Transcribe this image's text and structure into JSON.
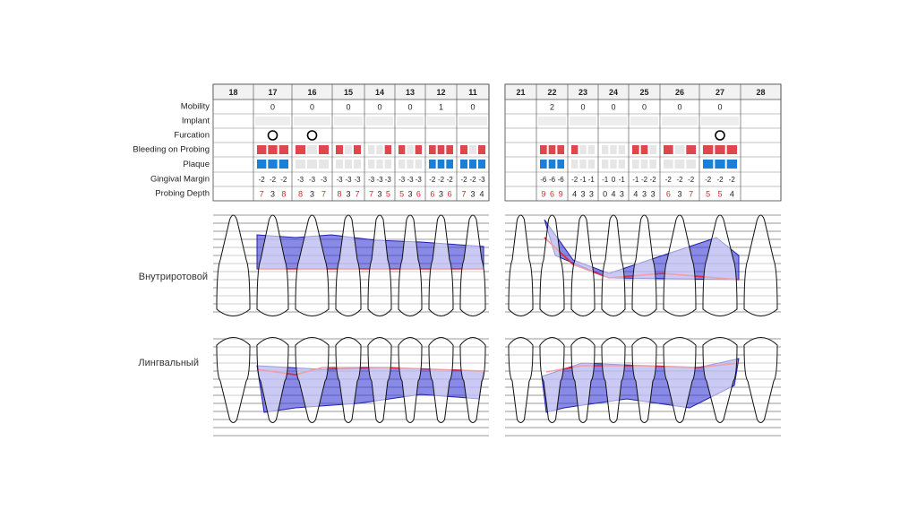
{
  "row_labels": [
    "Mobility",
    "Implant",
    "Furcation",
    "Bleeding on Probing",
    "Plaque",
    "Gingival Margin",
    "Probing Depth"
  ],
  "views": [
    "Внутриротовой",
    "Лингвальный"
  ],
  "quadrants": [
    {
      "teeth": [
        {
          "number": "18",
          "mobility": null,
          "furcation": false,
          "bleeding": [],
          "plaque": [],
          "gingival_margin": [],
          "probing_depth": []
        },
        {
          "number": "17",
          "mobility": 0,
          "furcation": true,
          "bleeding": [
            1,
            1,
            1
          ],
          "plaque": [
            1,
            1,
            1
          ],
          "gingival_margin": [
            -2,
            -2,
            -2
          ],
          "probing_depth": [
            7,
            3,
            8
          ]
        },
        {
          "number": "16",
          "mobility": 0,
          "furcation": true,
          "bleeding": [
            1,
            0,
            1
          ],
          "plaque": [
            0,
            0,
            0
          ],
          "gingival_margin": [
            -3,
            -3,
            -3
          ],
          "probing_depth": [
            8,
            3,
            7
          ]
        },
        {
          "number": "15",
          "mobility": 0,
          "furcation": false,
          "bleeding": [
            1,
            0,
            1
          ],
          "plaque": [
            0,
            0,
            0
          ],
          "gingival_margin": [
            -3,
            -3,
            -3
          ],
          "probing_depth": [
            8,
            3,
            7
          ]
        },
        {
          "number": "14",
          "mobility": 0,
          "furcation": false,
          "bleeding": [
            0,
            0,
            1
          ],
          "plaque": [
            0,
            0,
            0
          ],
          "gingival_margin": [
            -3,
            -3,
            -3
          ],
          "probing_depth": [
            7,
            3,
            5
          ]
        },
        {
          "number": "13",
          "mobility": 0,
          "furcation": false,
          "bleeding": [
            1,
            0,
            1
          ],
          "plaque": [
            0,
            0,
            0
          ],
          "gingival_margin": [
            -3,
            -3,
            -3
          ],
          "probing_depth": [
            5,
            3,
            6
          ]
        },
        {
          "number": "12",
          "mobility": 1,
          "furcation": false,
          "bleeding": [
            1,
            1,
            1
          ],
          "plaque": [
            1,
            1,
            1
          ],
          "gingival_margin": [
            -2,
            -2,
            -2
          ],
          "probing_depth": [
            6,
            3,
            6
          ]
        },
        {
          "number": "11",
          "mobility": 0,
          "furcation": false,
          "bleeding": [
            1,
            0,
            1
          ],
          "plaque": [
            1,
            1,
            1
          ],
          "gingival_margin": [
            -2,
            -2,
            -3
          ],
          "probing_depth": [
            7,
            3,
            4
          ]
        }
      ]
    },
    {
      "teeth": [
        {
          "number": "21",
          "mobility": null,
          "furcation": false,
          "bleeding": [],
          "plaque": [],
          "gingival_margin": [],
          "probing_depth": []
        },
        {
          "number": "22",
          "mobility": 2,
          "furcation": false,
          "bleeding": [
            1,
            1,
            1
          ],
          "plaque": [
            1,
            1,
            1
          ],
          "gingival_margin": [
            -6,
            -6,
            -6
          ],
          "probing_depth": [
            9,
            6,
            9
          ]
        },
        {
          "number": "23",
          "mobility": 0,
          "furcation": false,
          "bleeding": [
            1,
            0,
            0
          ],
          "plaque": [
            0,
            0,
            0
          ],
          "gingival_margin": [
            -2,
            -1,
            -1
          ],
          "probing_depth": [
            4,
            3,
            3
          ]
        },
        {
          "number": "24",
          "mobility": 0,
          "furcation": false,
          "bleeding": [
            0,
            0,
            0
          ],
          "plaque": [
            0,
            0,
            0
          ],
          "gingival_margin": [
            -1,
            0,
            -1
          ],
          "probing_depth": [
            0,
            4,
            3
          ]
        },
        {
          "number": "25",
          "mobility": 0,
          "furcation": false,
          "bleeding": [
            1,
            1,
            0
          ],
          "plaque": [
            0,
            0,
            0
          ],
          "gingival_margin": [
            -1,
            -2,
            -2
          ],
          "probing_depth": [
            4,
            3,
            3
          ]
        },
        {
          "number": "26",
          "mobility": 0,
          "furcation": false,
          "bleeding": [
            1,
            0,
            1
          ],
          "plaque": [
            0,
            0,
            0
          ],
          "gingival_margin": [
            -2,
            -2,
            -2
          ],
          "probing_depth": [
            6,
            3,
            7
          ]
        },
        {
          "number": "27",
          "mobility": 0,
          "furcation": true,
          "bleeding": [
            1,
            1,
            1
          ],
          "plaque": [
            1,
            1,
            1
          ],
          "gingival_margin": [
            -2,
            -2,
            -2
          ],
          "probing_depth": [
            5,
            5,
            4
          ]
        },
        {
          "number": "28",
          "mobility": null,
          "furcation": false,
          "bleeding": [],
          "plaque": [],
          "gingival_margin": [],
          "probing_depth": []
        }
      ]
    }
  ]
}
